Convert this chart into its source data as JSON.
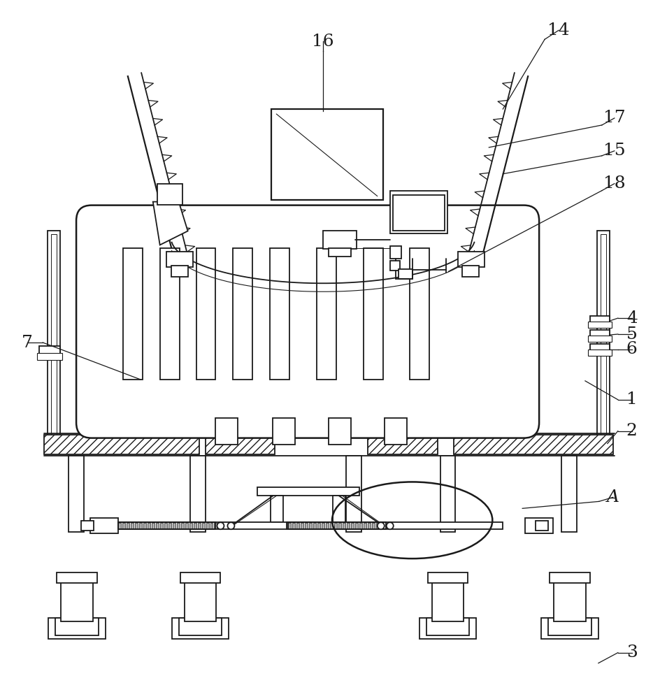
{
  "background_color": "#ffffff",
  "line_color": "#1a1a1a",
  "label_color": "#1a1a1a",
  "figsize": [
    9.45,
    10.0
  ],
  "dpi": 100
}
